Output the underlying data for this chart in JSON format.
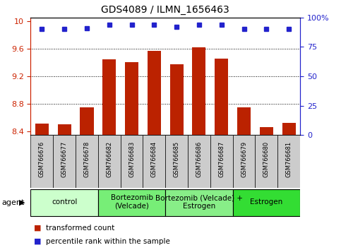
{
  "title": "GDS4089 / ILMN_1656463",
  "samples": [
    "GSM766676",
    "GSM766677",
    "GSM766678",
    "GSM766682",
    "GSM766683",
    "GSM766684",
    "GSM766685",
    "GSM766686",
    "GSM766687",
    "GSM766679",
    "GSM766680",
    "GSM766681"
  ],
  "bar_values": [
    8.52,
    8.51,
    8.75,
    9.44,
    9.4,
    9.57,
    9.37,
    9.62,
    9.46,
    8.75,
    8.46,
    8.53
  ],
  "percentile_values": [
    90,
    90,
    91,
    94,
    94,
    94,
    92,
    94,
    94,
    90,
    90,
    90
  ],
  "ylim_left": [
    8.35,
    10.05
  ],
  "ylim_right": [
    0,
    100
  ],
  "yticks_left": [
    8.4,
    8.8,
    9.2,
    9.6,
    10.0
  ],
  "yticks_right": [
    0,
    25,
    50,
    75,
    100
  ],
  "grid_values": [
    8.8,
    9.2,
    9.6
  ],
  "bar_color": "#bb2200",
  "dot_color": "#2222cc",
  "groups": [
    {
      "label": "control",
      "start": 0,
      "end": 3,
      "color": "#ccffcc"
    },
    {
      "label": "Bortezomib\n(Velcade)",
      "start": 3,
      "end": 6,
      "color": "#77ee77"
    },
    {
      "label": "Bortezomib (Velcade) +\nEstrogen",
      "start": 6,
      "end": 9,
      "color": "#88ee88"
    },
    {
      "label": "Estrogen",
      "start": 9,
      "end": 12,
      "color": "#33dd33"
    }
  ],
  "legend_bar_label": "transformed count",
  "legend_dot_label": "percentile rank within the sample",
  "agent_label": "agent",
  "left_axis_color": "#cc2200",
  "right_axis_color": "#2222cc",
  "sample_bg_color": "#cccccc",
  "background_color": "#ffffff"
}
